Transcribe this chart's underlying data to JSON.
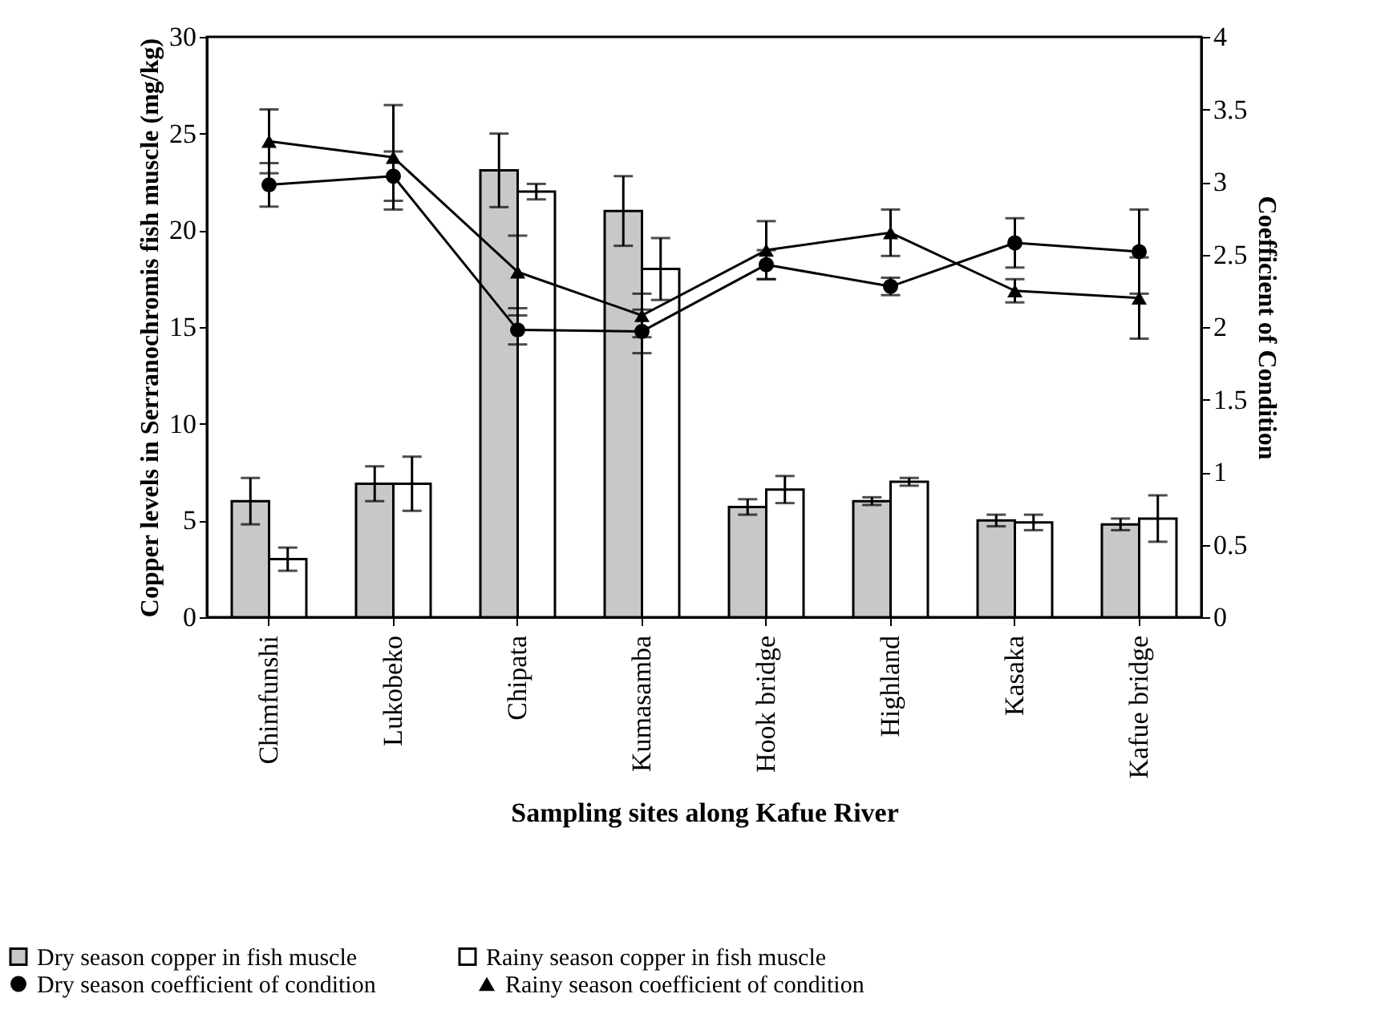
{
  "chart_data": {
    "type": "bar",
    "xlabel": "Sampling sites along Kafue River",
    "ylabel": "Copper levels in Serranochromis fish muscle (mg/kg)",
    "y2label": "Coefficient of Condition",
    "categories": [
      "Chimfunshi",
      "Lukobeko",
      "Chipata",
      "Kumasamba",
      "Hook bridge",
      "Highland",
      "Kasaka",
      "Kafue bridge"
    ],
    "series": [
      {
        "name": "Dry season copper in fish muscle",
        "color": "#c8c8c8",
        "values": [
          6.0,
          6.9,
          23.1,
          21.0,
          5.7,
          6.0,
          5.0,
          4.8
        ],
        "errors": [
          1.2,
          0.9,
          1.9,
          1.8,
          0.4,
          0.2,
          0.3,
          0.3
        ]
      },
      {
        "name": "Rainy  season copper  in fish muscle",
        "color": "#ffffff",
        "values": [
          3.0,
          6.9,
          22.0,
          18.0,
          6.6,
          7.0,
          4.9,
          5.1
        ],
        "errors": [
          0.6,
          1.4,
          0.4,
          1.6,
          0.7,
          0.2,
          0.4,
          1.2
        ]
      },
      {
        "name": "Dry season coefficient of condition",
        "type": "line",
        "axis": "y2",
        "marker": "circle",
        "color": "#000000",
        "values": [
          2.98,
          3.04,
          1.98,
          1.97,
          2.43,
          2.28,
          2.58,
          2.52
        ],
        "errors": [
          0.15,
          0.17,
          0.1,
          0.15,
          0.1,
          0.06,
          0.17,
          0.29
        ]
      },
      {
        "name": "Rainy season coefficient of condition",
        "type": "line",
        "axis": "y2",
        "marker": "triangle",
        "color": "#000000",
        "values": [
          3.28,
          3.17,
          2.38,
          2.08,
          2.53,
          2.65,
          2.25,
          2.2
        ],
        "errors": [
          0.22,
          0.36,
          0.25,
          0.15,
          0.2,
          0.16,
          0.08,
          0.28
        ]
      }
    ],
    "ylim": [
      0,
      30
    ],
    "yticks": [
      0,
      5,
      10,
      15,
      20,
      25,
      30
    ],
    "y2lim": [
      0,
      4
    ],
    "y2ticks": [
      0,
      0.5,
      1,
      1.5,
      2,
      2.5,
      3,
      3.5,
      4
    ],
    "legend": "bottom",
    "grid": false
  }
}
